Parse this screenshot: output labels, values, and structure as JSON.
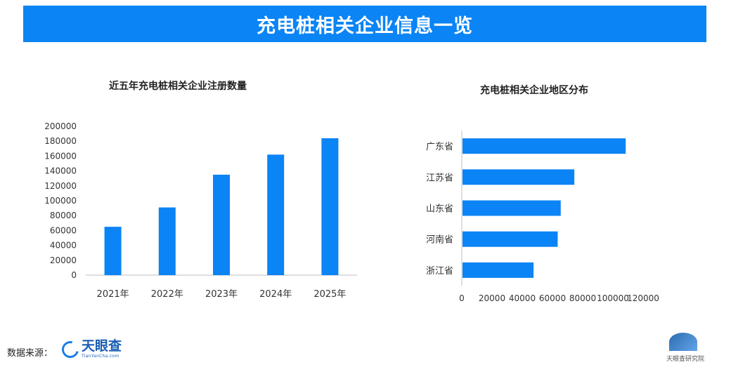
{
  "header": {
    "title": "充电桩相关企业信息一览"
  },
  "chart_data": [
    {
      "type": "bar",
      "title": "近五年充电桩相关企业注册数量",
      "categories": [
        "2021年",
        "2022年",
        "2023年",
        "2024年",
        "2025年"
      ],
      "values": [
        65000,
        91000,
        135000,
        162000,
        184000
      ],
      "ylim": [
        0,
        200000
      ],
      "yticks": [
        0,
        20000,
        40000,
        60000,
        80000,
        100000,
        120000,
        140000,
        160000,
        180000,
        200000
      ],
      "xlabel": "",
      "ylabel": "",
      "grid": false,
      "color": "#0b84f5"
    },
    {
      "type": "bar",
      "orientation": "horizontal",
      "title": "充电桩相关企业地区分布",
      "categories": [
        "广东省",
        "江苏省",
        "山东省",
        "河南省",
        "浙江省"
      ],
      "values": [
        108000,
        74000,
        65000,
        63000,
        47000
      ],
      "xlim": [
        0,
        120000
      ],
      "xticks": [
        0,
        20000,
        40000,
        60000,
        80000,
        100000,
        120000
      ],
      "xlabel": "",
      "ylabel": "",
      "grid": false,
      "color": "#0b84f5"
    }
  ],
  "footer": {
    "source_label": "数据来源：",
    "logo_text": "天眼查",
    "logo_sub": "TianYanCha.com",
    "watermark_text": "天眼查研究院"
  }
}
